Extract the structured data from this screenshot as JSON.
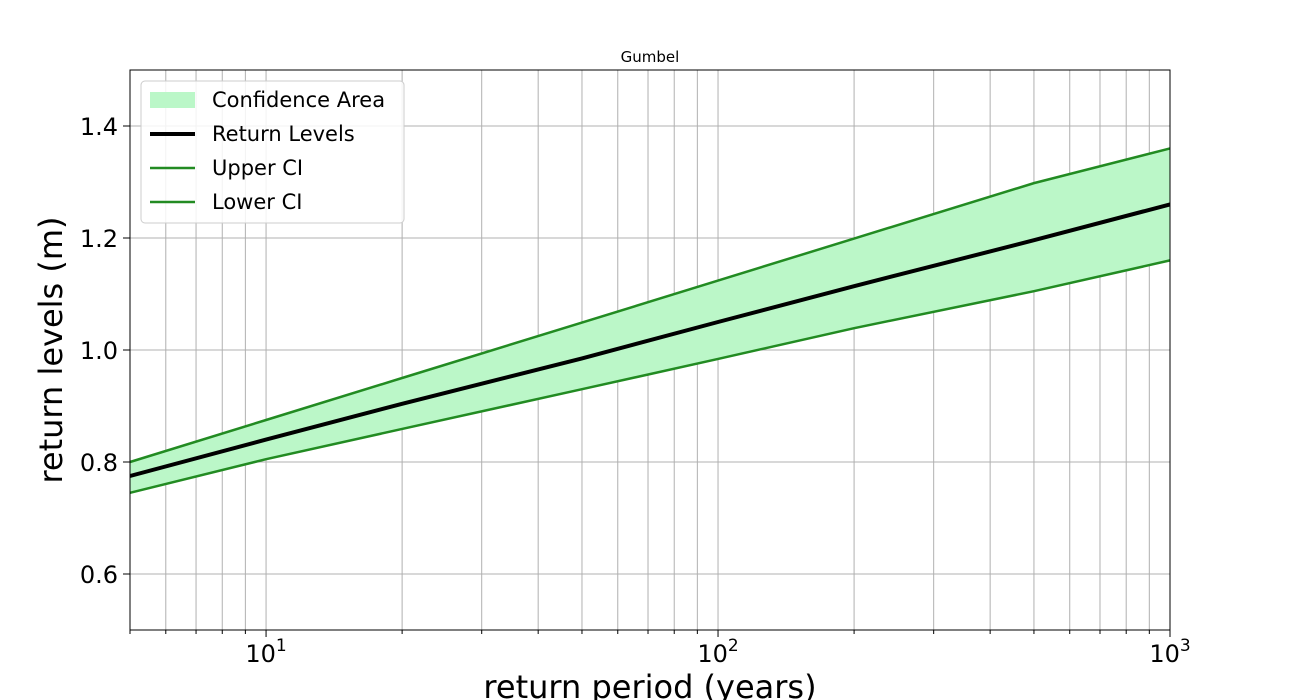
{
  "chart_data": {
    "type": "line",
    "title": "Gumbel",
    "xlabel": "return period (years)",
    "ylabel": "return levels (m)",
    "xscale": "log",
    "xlim": [
      5,
      1000
    ],
    "ylim": [
      0.5,
      1.5
    ],
    "xticks": [
      {
        "value": 10,
        "base": "10",
        "exp": "1"
      },
      {
        "value": 100,
        "base": "10",
        "exp": "2"
      },
      {
        "value": 1000,
        "base": "10",
        "exp": "3"
      }
    ],
    "yticks": [
      {
        "value": 0.6,
        "label": "0.6"
      },
      {
        "value": 0.8,
        "label": "0.8"
      },
      {
        "value": 1.0,
        "label": "1.0"
      },
      {
        "value": 1.2,
        "label": "1.2"
      },
      {
        "value": 1.4,
        "label": "1.4"
      }
    ],
    "grid": true,
    "legend_position": "top-left",
    "x": [
      5,
      10,
      20,
      50,
      100,
      200,
      500,
      1000
    ],
    "series": [
      {
        "name": "Return Levels",
        "color": "#000000",
        "values": [
          0.775,
          0.84,
          0.904,
          0.985,
          1.05,
          1.114,
          1.196,
          1.26
        ]
      },
      {
        "name": "Upper CI",
        "color": "#228b22",
        "values": [
          0.8,
          0.875,
          0.95,
          1.049,
          1.124,
          1.199,
          1.298,
          1.36
        ]
      },
      {
        "name": "Lower CI",
        "color": "#228b22",
        "values": [
          0.745,
          0.805,
          0.859,
          0.93,
          0.984,
          1.039,
          1.105,
          1.16
        ]
      }
    ],
    "confidence_area": {
      "name": "Confidence Area",
      "color": "#bbf7c8"
    },
    "legend": [
      {
        "label": "Confidence Area",
        "kind": "patch",
        "color": "#bbf7c8"
      },
      {
        "label": "Return Levels",
        "kind": "line",
        "color": "#000000"
      },
      {
        "label": "Upper CI",
        "kind": "line",
        "color": "#228b22"
      },
      {
        "label": "Lower CI",
        "kind": "line",
        "color": "#228b22"
      }
    ]
  }
}
